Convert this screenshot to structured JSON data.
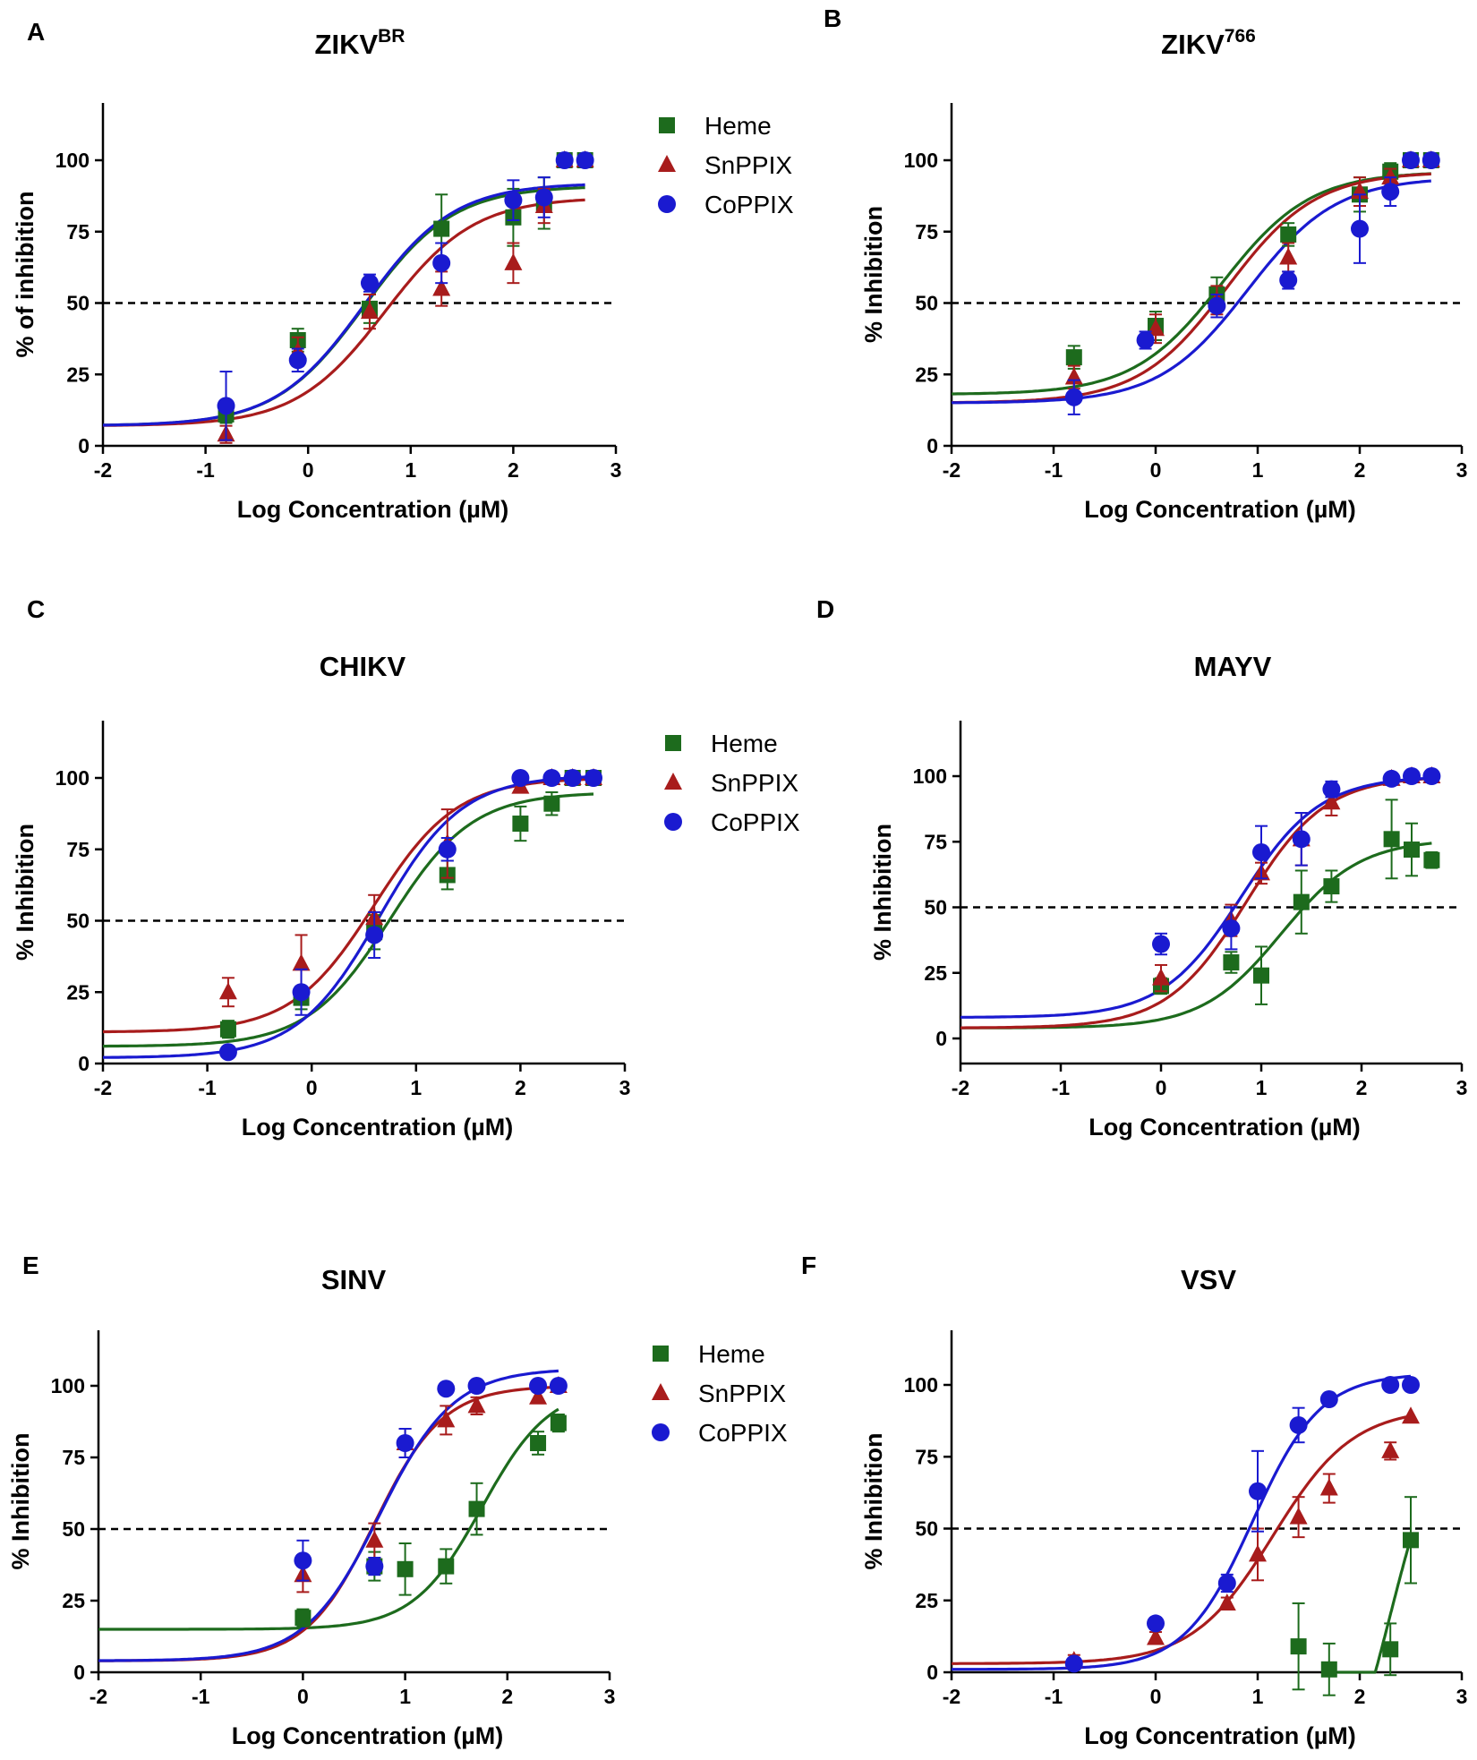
{
  "colors": {
    "heme": "#1d6b1d",
    "snppix": "#a81c1c",
    "coppix": "#1a1ad0",
    "axis": "#000000"
  },
  "chart_data": [
    {
      "id": "A",
      "panel_label": "A",
      "type": "scatter",
      "title": "ZIKV",
      "title_sup": "BR",
      "xlabel": "Log Concentration (µM)",
      "ylabel": "% of inhibition",
      "xlim": [
        -2,
        3
      ],
      "ylim": [
        0,
        120
      ],
      "xticks": [
        "-2",
        "-1",
        "0",
        "1",
        "2",
        "3"
      ],
      "yticks": [
        "0",
        "25",
        "50",
        "75",
        "100"
      ],
      "reference_line": 50,
      "legend": true,
      "series": [
        {
          "name": "Heme",
          "key": "heme",
          "marker": "square",
          "x": [
            -0.8,
            -0.1,
            0.6,
            1.3,
            2.0,
            2.3,
            2.5,
            2.7
          ],
          "y": [
            11,
            37,
            48,
            76,
            80,
            85,
            100,
            100
          ],
          "err": [
            3,
            4,
            5,
            12,
            10,
            9,
            0,
            0
          ],
          "fit": {
            "bottom": 7,
            "top": 91,
            "logec50": 0.55,
            "hill": 1.0
          }
        },
        {
          "name": "SnPPIX",
          "key": "snppix",
          "marker": "triangle",
          "x": [
            -0.8,
            -0.1,
            0.6,
            1.3,
            2.0,
            2.3,
            2.5,
            2.7
          ],
          "y": [
            4,
            33,
            47,
            55,
            64,
            84,
            100,
            100
          ],
          "err": [
            3,
            5,
            6,
            6,
            7,
            6,
            0,
            0
          ],
          "fit": {
            "bottom": 7,
            "top": 87,
            "logec50": 0.75,
            "hill": 1.0
          }
        },
        {
          "name": "CoPPIX",
          "key": "coppix",
          "marker": "circle",
          "x": [
            -0.8,
            -0.1,
            0.6,
            1.3,
            2.0,
            2.3,
            2.5,
            2.7
          ],
          "y": [
            14,
            30,
            57,
            64,
            86,
            87,
            100,
            100
          ],
          "err": [
            12,
            4,
            3,
            7,
            7,
            7,
            0,
            0
          ],
          "fit": {
            "bottom": 7,
            "top": 92,
            "logec50": 0.55,
            "hill": 1.0
          }
        }
      ]
    },
    {
      "id": "B",
      "panel_label": "B",
      "type": "scatter",
      "title": "ZIKV",
      "title_sup": "766",
      "xlabel": "Log Concentration (µM)",
      "ylabel": "% Inhibition",
      "xlim": [
        -2,
        3
      ],
      "ylim": [
        0,
        120
      ],
      "xticks": [
        "-2",
        "-1",
        "0",
        "1",
        "2",
        "3"
      ],
      "yticks": [
        "0",
        "25",
        "50",
        "75",
        "100"
      ],
      "reference_line": 50,
      "legend": false,
      "series": [
        {
          "name": "Heme",
          "key": "heme",
          "marker": "square",
          "x": [
            -0.8,
            0.0,
            0.6,
            1.3,
            2.0,
            2.3,
            2.5,
            2.7
          ],
          "y": [
            31,
            42,
            53,
            74,
            88,
            96,
            100,
            100
          ],
          "err": [
            4,
            5,
            6,
            4,
            6,
            3,
            0,
            0
          ],
          "fit": {
            "bottom": 18,
            "top": 96,
            "logec50": 0.65,
            "hill": 1.0
          }
        },
        {
          "name": "SnPPIX",
          "key": "snppix",
          "marker": "triangle",
          "x": [
            -0.8,
            0.0,
            0.6,
            1.3,
            2.0,
            2.3,
            2.5,
            2.7
          ],
          "y": [
            24,
            41,
            51,
            66,
            89,
            94,
            100,
            100
          ],
          "err": [
            4,
            5,
            5,
            5,
            5,
            3,
            0,
            0
          ],
          "fit": {
            "bottom": 15,
            "top": 96,
            "logec50": 0.7,
            "hill": 1.0
          }
        },
        {
          "name": "CoPPIX",
          "key": "coppix",
          "marker": "circle",
          "x": [
            -0.8,
            -0.1,
            0.6,
            1.3,
            2.0,
            2.3,
            2.5,
            2.7
          ],
          "y": [
            17,
            37,
            49,
            58,
            76,
            89,
            100,
            100
          ],
          "err": [
            6,
            3,
            4,
            3,
            12,
            5,
            0,
            0
          ],
          "fit": {
            "bottom": 15,
            "top": 94,
            "logec50": 0.9,
            "hill": 1.0
          }
        }
      ]
    },
    {
      "id": "C",
      "panel_label": "C",
      "type": "scatter",
      "title": "CHIKV",
      "title_sup": "",
      "xlabel": "Log Concentration (µM)",
      "ylabel": "% Inhibition",
      "xlim": [
        -2,
        3
      ],
      "ylim": [
        0,
        120
      ],
      "xticks": [
        "-2",
        "-1",
        "0",
        "1",
        "2",
        "3"
      ],
      "yticks": [
        "0",
        "25",
        "50",
        "75",
        "100"
      ],
      "reference_line": 50,
      "legend": true,
      "series": [
        {
          "name": "Heme",
          "key": "heme",
          "marker": "square",
          "x": [
            -0.8,
            -0.1,
            0.6,
            1.3,
            2.0,
            2.3,
            2.5,
            2.7
          ],
          "y": [
            12,
            23,
            46,
            66,
            84,
            91,
            100,
            100
          ],
          "err": [
            3,
            4,
            6,
            5,
            6,
            4,
            0,
            0
          ],
          "fit": {
            "bottom": 6,
            "top": 95,
            "logec50": 0.75,
            "hill": 1.1
          }
        },
        {
          "name": "SnPPIX",
          "key": "snppix",
          "marker": "triangle",
          "x": [
            -0.8,
            -0.1,
            0.6,
            1.3,
            2.0,
            2.3,
            2.5,
            2.7
          ],
          "y": [
            25,
            35,
            51,
            77,
            97,
            100,
            100,
            100
          ],
          "err": [
            5,
            10,
            8,
            12,
            2,
            1,
            0,
            0
          ],
          "fit": {
            "bottom": 11,
            "top": 100,
            "logec50": 0.6,
            "hill": 1.1
          }
        },
        {
          "name": "CoPPIX",
          "key": "coppix",
          "marker": "circle",
          "x": [
            -0.8,
            -0.1,
            0.6,
            1.3,
            2.0,
            2.3,
            2.5,
            2.7
          ],
          "y": [
            4,
            25,
            45,
            75,
            100,
            100,
            100,
            100
          ],
          "err": [
            1,
            8,
            8,
            4,
            0,
            0,
            0,
            0
          ],
          "fit": {
            "bottom": 2,
            "top": 101,
            "logec50": 0.65,
            "hill": 1.1
          }
        }
      ]
    },
    {
      "id": "D",
      "panel_label": "D",
      "type": "scatter",
      "title": "MAYV",
      "title_sup": "",
      "xlabel": "Log Concentration (µM)",
      "ylabel": "% Inhibition",
      "xlim": [
        -2,
        3
      ],
      "ylim": [
        -10,
        120
      ],
      "xticks": [
        "-2",
        "-1",
        "0",
        "1",
        "2",
        "3"
      ],
      "yticks": [
        "0",
        "25",
        "50",
        "75",
        "100"
      ],
      "reference_line": 50,
      "legend": false,
      "series": [
        {
          "name": "Heme",
          "key": "heme",
          "marker": "square",
          "x": [
            0.0,
            0.7,
            1.0,
            1.4,
            1.7,
            2.3,
            2.5,
            2.7
          ],
          "y": [
            20,
            29,
            24,
            52,
            58,
            76,
            72,
            68
          ],
          "err": [
            3,
            4,
            11,
            12,
            6,
            15,
            10,
            3
          ],
          "fit": {
            "bottom": 4,
            "top": 76,
            "logec50": 1.2,
            "hill": 1.1
          }
        },
        {
          "name": "SnPPIX",
          "key": "snppix",
          "marker": "triangle",
          "x": [
            0.0,
            0.7,
            1.0,
            1.4,
            1.7,
            2.3,
            2.5,
            2.7
          ],
          "y": [
            23,
            45,
            63,
            76,
            90,
            99,
            100,
            100
          ],
          "err": [
            5,
            6,
            4,
            10,
            5,
            2,
            0,
            0
          ],
          "fit": {
            "bottom": 4,
            "top": 100,
            "logec50": 0.85,
            "hill": 1.1
          }
        },
        {
          "name": "CoPPIX",
          "key": "coppix",
          "marker": "circle",
          "x": [
            0.0,
            0.7,
            1.0,
            1.4,
            1.7,
            2.3,
            2.5,
            2.7
          ],
          "y": [
            36,
            42,
            71,
            76,
            95,
            99,
            100,
            100
          ],
          "err": [
            4,
            8,
            10,
            10,
            3,
            2,
            0,
            0
          ],
          "fit": {
            "bottom": 8,
            "top": 100,
            "logec50": 0.8,
            "hill": 1.1
          }
        }
      ]
    },
    {
      "id": "E",
      "panel_label": "E",
      "type": "scatter",
      "title": "SINV",
      "title_sup": "",
      "xlabel": "Log Concentration (µM)",
      "ylabel": "% Inhibition",
      "xlim": [
        -2,
        3
      ],
      "ylim": [
        0,
        120
      ],
      "xticks": [
        "-2",
        "-1",
        "0",
        "1",
        "2",
        "3"
      ],
      "yticks": [
        "0",
        "25",
        "50",
        "75",
        "100"
      ],
      "reference_line": 50,
      "legend": true,
      "series": [
        {
          "name": "Heme",
          "key": "heme",
          "marker": "square",
          "x": [
            0.0,
            0.7,
            1.0,
            1.4,
            1.7,
            2.3,
            2.5
          ],
          "y": [
            19,
            37,
            36,
            37,
            57,
            80,
            87
          ],
          "err": [
            3,
            5,
            9,
            6,
            9,
            4,
            3
          ],
          "fit": {
            "bottom": 15,
            "top": 100,
            "logec50": 1.75,
            "hill": 1.3
          }
        },
        {
          "name": "SnPPIX",
          "key": "snppix",
          "marker": "triangle",
          "x": [
            0.0,
            0.7,
            1.0,
            1.4,
            1.7,
            2.3,
            2.5
          ],
          "y": [
            34,
            46,
            80,
            88,
            93,
            96,
            100
          ],
          "err": [
            6,
            6,
            5,
            5,
            3,
            2,
            0
          ],
          "fit": {
            "bottom": 4,
            "top": 100,
            "logec50": 0.7,
            "hill": 1.3
          }
        },
        {
          "name": "CoPPIX",
          "key": "coppix",
          "marker": "circle",
          "x": [
            0.0,
            0.7,
            1.0,
            1.4,
            1.7,
            2.3,
            2.5
          ],
          "y": [
            39,
            37,
            80,
            99,
            100,
            100,
            100
          ],
          "err": [
            7,
            3,
            5,
            1,
            0,
            0,
            0
          ],
          "fit": {
            "bottom": 4,
            "top": 106,
            "logec50": 0.75,
            "hill": 1.2
          }
        }
      ]
    },
    {
      "id": "F",
      "panel_label": "F",
      "type": "scatter",
      "title": "VSV",
      "title_sup": "",
      "xlabel": "Log Concentration (µM)",
      "ylabel": "% Inhibition",
      "xlim": [
        -2,
        3
      ],
      "ylim": [
        0,
        120
      ],
      "xticks": [
        "-2",
        "-1",
        "0",
        "1",
        "2",
        "3"
      ],
      "yticks": [
        "0",
        "25",
        "50",
        "75",
        "100"
      ],
      "reference_line": 50,
      "legend": false,
      "series": [
        {
          "name": "Heme",
          "key": "heme",
          "marker": "square",
          "x": [
            1.4,
            1.7,
            2.3,
            2.5
          ],
          "y": [
            9,
            1,
            8,
            46
          ],
          "err": [
            15,
            9,
            9,
            15
          ],
          "fit": {
            "bottom": -60,
            "top": 100,
            "logec50": 2.3,
            "hill": 1.5,
            "xmin": 1.78
          }
        },
        {
          "name": "SnPPIX",
          "key": "snppix",
          "marker": "triangle",
          "x": [
            -0.8,
            0.0,
            0.7,
            1.0,
            1.4,
            1.7,
            2.3,
            2.5
          ],
          "y": [
            4,
            12,
            24,
            41,
            54,
            64,
            77,
            89
          ],
          "err": [
            2,
            2,
            2,
            9,
            7,
            5,
            3,
            0
          ],
          "fit": {
            "bottom": 3,
            "top": 92,
            "logec50": 1.15,
            "hill": 1.1
          }
        },
        {
          "name": "CoPPIX",
          "key": "coppix",
          "marker": "circle",
          "x": [
            -0.8,
            0.0,
            0.7,
            1.0,
            1.4,
            1.7,
            2.3,
            2.5
          ],
          "y": [
            3,
            17,
            31,
            63,
            86,
            95,
            100,
            100
          ],
          "err": [
            2,
            2,
            3,
            14,
            6,
            2,
            0,
            0
          ],
          "fit": {
            "bottom": 1,
            "top": 104,
            "logec50": 0.95,
            "hill": 1.3
          }
        }
      ]
    }
  ]
}
